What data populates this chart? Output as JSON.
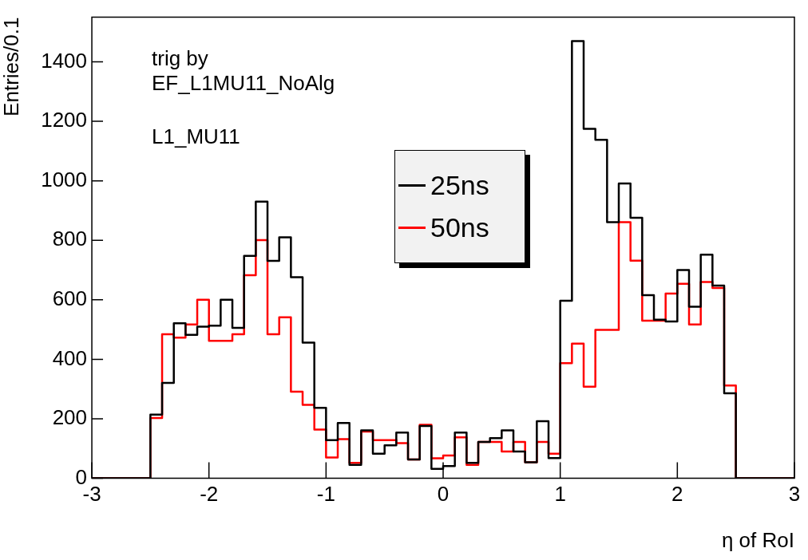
{
  "chart_data": {
    "type": "histogram",
    "xlabel": "η of RoI",
    "ylabel": "Entries/0.1",
    "bins": [
      -3,
      -2.9,
      -2.8,
      -2.7,
      -2.6,
      -2.5,
      -2.4,
      -2.3,
      -2.2,
      -2.1,
      -2,
      -1.9,
      -1.8,
      -1.7,
      -1.6,
      -1.5,
      -1.4,
      -1.3,
      -1.2,
      -1.1,
      -1,
      -0.9,
      -0.8,
      -0.7,
      -0.6,
      -0.5,
      -0.4,
      -0.3,
      -0.2,
      -0.1,
      0,
      0.1,
      0.2,
      0.3,
      0.4,
      0.5,
      0.6,
      0.7,
      0.8,
      0.9,
      1,
      1.1,
      1.2,
      1.3,
      1.4,
      1.5,
      1.6,
      1.7,
      1.8,
      1.9,
      2,
      2.1,
      2.2,
      2.3,
      2.4,
      2.5,
      2.6,
      2.7,
      2.8,
      2.9,
      3
    ],
    "series": [
      {
        "name": "25ns",
        "color": "#000000",
        "values": [
          0,
          0,
          0,
          0,
          0,
          214,
          321,
          521,
          482,
          510,
          513,
          600,
          506,
          748,
          930,
          731,
          810,
          676,
          456,
          237,
          128,
          186,
          45,
          161,
          83,
          111,
          154,
          63,
          176,
          32,
          41,
          154,
          52,
          122,
          135,
          161,
          90,
          54,
          192,
          68,
          597,
          1470,
          1175,
          1138,
          861,
          991,
          876,
          616,
          533,
          527,
          700,
          577,
          752,
          648,
          286,
          0,
          0,
          0,
          0,
          0
        ]
      },
      {
        "name": "50ns",
        "color": "#ff0000",
        "values": [
          0,
          0,
          0,
          0,
          0,
          203,
          484,
          473,
          517,
          600,
          462,
          462,
          484,
          683,
          801,
          484,
          541,
          291,
          247,
          164,
          70,
          132,
          52,
          157,
          128,
          128,
          118,
          63,
          180,
          67,
          77,
          138,
          45,
          122,
          122,
          90,
          122,
          54,
          122,
          83,
          387,
          453,
          308,
          499,
          499,
          861,
          732,
          530,
          530,
          621,
          654,
          517,
          660,
          640,
          312,
          0,
          0,
          0,
          0,
          0
        ]
      }
    ],
    "xlim": [
      -3,
      3
    ],
    "xticks": [
      -3,
      -2,
      -1,
      0,
      1,
      2,
      3
    ],
    "ylim": [
      0,
      1550
    ],
    "yticks": [
      0,
      200,
      400,
      600,
      800,
      1000,
      1200,
      1400
    ],
    "grid": false,
    "legend": "top",
    "annotations": [
      "trig by\nEF_L1MU11_NoAlg",
      "L1_MU11"
    ]
  }
}
